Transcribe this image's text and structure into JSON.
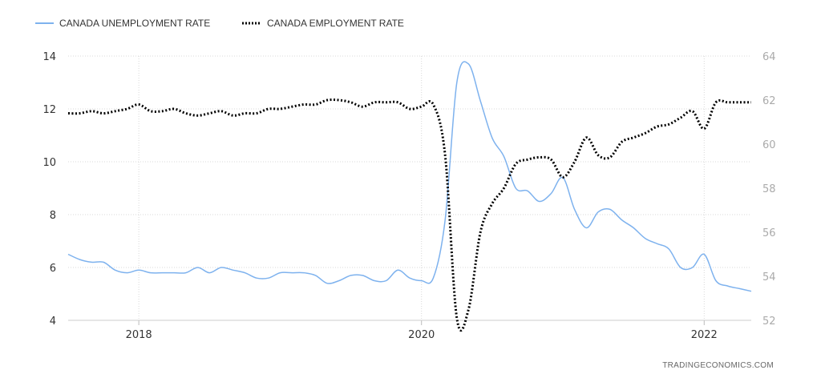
{
  "chart_data": {
    "type": "line",
    "title": "",
    "xlabel": "",
    "ylabel": "",
    "grid": true,
    "legend_position": "top-left",
    "x_range": [
      2017.5,
      2022.333
    ],
    "x_ticks": [
      2018,
      2020,
      2022
    ],
    "x_tick_labels": [
      "2018",
      "2020",
      "2022"
    ],
    "y_left": {
      "range": [
        4,
        14
      ],
      "ticks": [
        4,
        6,
        8,
        10,
        12,
        14
      ],
      "tick_labels": [
        "4",
        "6",
        "8",
        "10",
        "12",
        "14"
      ]
    },
    "y_right": {
      "range": [
        52,
        64
      ],
      "ticks": [
        52,
        54,
        56,
        58,
        60,
        62,
        64
      ],
      "tick_labels": [
        "52",
        "54",
        "56",
        "58",
        "60",
        "62",
        "64"
      ]
    },
    "series": [
      {
        "name": "CANADA UNEMPLOYMENT RATE",
        "axis": "left",
        "color": "#7eb2ee",
        "style": "solid",
        "x": [
          2017.5,
          2017.583,
          2017.667,
          2017.75,
          2017.833,
          2017.917,
          2018.0,
          2018.083,
          2018.167,
          2018.25,
          2018.333,
          2018.417,
          2018.5,
          2018.583,
          2018.667,
          2018.75,
          2018.833,
          2018.917,
          2019.0,
          2019.083,
          2019.167,
          2019.25,
          2019.333,
          2019.417,
          2019.5,
          2019.583,
          2019.667,
          2019.75,
          2019.833,
          2019.917,
          2020.0,
          2020.083,
          2020.167,
          2020.25,
          2020.333,
          2020.417,
          2020.5,
          2020.583,
          2020.667,
          2020.75,
          2020.833,
          2020.917,
          2021.0,
          2021.083,
          2021.167,
          2021.25,
          2021.333,
          2021.417,
          2021.5,
          2021.583,
          2021.667,
          2021.75,
          2021.833,
          2021.917,
          2022.0,
          2022.083,
          2022.167,
          2022.25,
          2022.333
        ],
        "values": [
          6.5,
          6.3,
          6.2,
          6.2,
          5.9,
          5.8,
          5.9,
          5.8,
          5.8,
          5.8,
          5.8,
          6.0,
          5.8,
          6.0,
          5.9,
          5.8,
          5.6,
          5.6,
          5.8,
          5.8,
          5.8,
          5.7,
          5.4,
          5.5,
          5.7,
          5.7,
          5.5,
          5.5,
          5.9,
          5.6,
          5.5,
          5.6,
          7.8,
          13.0,
          13.7,
          12.3,
          10.9,
          10.2,
          9.0,
          8.9,
          8.5,
          8.8,
          9.4,
          8.2,
          7.5,
          8.1,
          8.2,
          7.8,
          7.5,
          7.1,
          6.9,
          6.7,
          6.0,
          6.0,
          6.5,
          5.5,
          5.3,
          5.2,
          5.1
        ]
      },
      {
        "name": "CANADA EMPLOYMENT RATE",
        "axis": "right",
        "color": "#000000",
        "style": "dotted",
        "x": [
          2017.5,
          2017.583,
          2017.667,
          2017.75,
          2017.833,
          2017.917,
          2018.0,
          2018.083,
          2018.167,
          2018.25,
          2018.333,
          2018.417,
          2018.5,
          2018.583,
          2018.667,
          2018.75,
          2018.833,
          2018.917,
          2019.0,
          2019.083,
          2019.167,
          2019.25,
          2019.333,
          2019.417,
          2019.5,
          2019.583,
          2019.667,
          2019.75,
          2019.833,
          2019.917,
          2020.0,
          2020.083,
          2020.167,
          2020.25,
          2020.333,
          2020.417,
          2020.5,
          2020.583,
          2020.667,
          2020.75,
          2020.833,
          2020.917,
          2021.0,
          2021.083,
          2021.167,
          2021.25,
          2021.333,
          2021.417,
          2021.5,
          2021.583,
          2021.667,
          2021.75,
          2021.833,
          2021.917,
          2022.0,
          2022.083,
          2022.167,
          2022.25,
          2022.333
        ],
        "values": [
          61.4,
          61.4,
          61.5,
          61.4,
          61.5,
          61.6,
          61.8,
          61.5,
          61.5,
          61.6,
          61.4,
          61.3,
          61.4,
          61.5,
          61.3,
          61.4,
          61.4,
          61.6,
          61.6,
          61.7,
          61.8,
          61.8,
          62.0,
          62.0,
          61.9,
          61.7,
          61.9,
          61.9,
          61.9,
          61.6,
          61.7,
          61.8,
          59.5,
          52.1,
          52.5,
          56.0,
          57.3,
          58.0,
          59.1,
          59.3,
          59.4,
          59.3,
          58.5,
          59.2,
          60.3,
          59.5,
          59.4,
          60.1,
          60.3,
          60.5,
          60.8,
          60.9,
          61.2,
          61.5,
          60.7,
          61.9,
          61.9,
          61.9,
          61.9
        ]
      }
    ]
  },
  "source_label": "TRADINGECONOMICS.COM"
}
